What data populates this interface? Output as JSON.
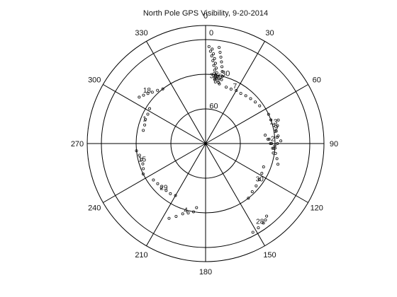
{
  "chart_data": {
    "type": "scatter",
    "projection": "polar",
    "title": "North Pole GPS Visibility, 9-20-2014",
    "angle_direction": "clockwise",
    "zero_location": "top",
    "angle_tick_labels": [
      "0",
      "30",
      "60",
      "90",
      "120",
      "150",
      "180",
      "210",
      "240",
      "270",
      "300",
      "330"
    ],
    "inner_zero_label": "0",
    "radial_tick_labels": [
      "30",
      "60"
    ],
    "elevation_range": [
      0,
      90
    ],
    "grid": true,
    "tracks": [
      {
        "prn": "16",
        "label_at": [
          10,
          34
        ],
        "points": [
          [
            4,
            8
          ],
          [
            5,
            12
          ],
          [
            6,
            16
          ],
          [
            7,
            20
          ],
          [
            8,
            24
          ],
          [
            9,
            28
          ],
          [
            10,
            31
          ],
          [
            11,
            34
          ],
          [
            12,
            36
          ],
          [
            13,
            37
          ]
        ]
      },
      {
        "prn": "30",
        "label_at": [
          7,
          33
        ],
        "points": [
          [
            2,
            6
          ],
          [
            3,
            10
          ],
          [
            4,
            14
          ],
          [
            5,
            18
          ],
          [
            6,
            22
          ],
          [
            7,
            26
          ],
          [
            7,
            29
          ],
          [
            8,
            32
          ],
          [
            8,
            34
          ],
          [
            9,
            36
          ]
        ]
      },
      {
        "prn": "15",
        "label_at": [
          11,
          33
        ],
        "points": [
          [
            8,
            6
          ],
          [
            9,
            10
          ],
          [
            10,
            14
          ],
          [
            11,
            18
          ],
          [
            12,
            22
          ],
          [
            13,
            26
          ],
          [
            14,
            30
          ],
          [
            14,
            33
          ]
        ]
      },
      {
        "prn": "7",
        "label_at": [
          28,
          36
        ],
        "points": [
          [
            20,
            38
          ],
          [
            25,
            38
          ],
          [
            30,
            37
          ],
          [
            35,
            37
          ],
          [
            40,
            36
          ],
          [
            45,
            35
          ],
          [
            50,
            34
          ],
          [
            55,
            33
          ]
        ]
      },
      {
        "prn": "13",
        "label_at": [
          74,
          29
        ],
        "points": [
          [
            65,
            30
          ],
          [
            70,
            30
          ],
          [
            75,
            29
          ],
          [
            80,
            29
          ],
          [
            85,
            28
          ],
          [
            90,
            28
          ]
        ]
      },
      {
        "prn": "9",
        "label_at": [
          79,
          28
        ],
        "points": [
          [
            72,
            24
          ],
          [
            76,
            26
          ],
          [
            80,
            28
          ],
          [
            84,
            27
          ],
          [
            88,
            25
          ]
        ]
      },
      {
        "prn": "8",
        "label_at": [
          95,
          30
        ],
        "points": [
          [
            86,
            36
          ],
          [
            90,
            34
          ],
          [
            94,
            31
          ],
          [
            98,
            29
          ],
          [
            102,
            27
          ],
          [
            106,
            25
          ]
        ]
      },
      {
        "prn": "2",
        "label_at": [
          88,
          32
        ],
        "points": [
          [
            82,
            38
          ],
          [
            86,
            35
          ],
          [
            90,
            33
          ],
          [
            94,
            32
          ],
          [
            98,
            31
          ]
        ]
      },
      {
        "prn": "30",
        "label_at": [
          125,
          33
        ],
        "points": [
          [
            112,
            36
          ],
          [
            118,
            35
          ],
          [
            124,
            34
          ],
          [
            130,
            33
          ],
          [
            136,
            32
          ],
          [
            142,
            30
          ]
        ]
      },
      {
        "prn": "28",
        "label_at": [
          146,
          6
        ],
        "points": [
          [
            140,
            8
          ],
          [
            142,
            6
          ],
          [
            144,
            5
          ],
          [
            148,
            4
          ],
          [
            152,
            3
          ]
        ]
      },
      {
        "prn": "4",
        "label_at": [
          196,
          28
        ],
        "points": [
          [
            188,
            34
          ],
          [
            190,
            30
          ],
          [
            194,
            28
          ],
          [
            198,
            26
          ],
          [
            202,
            22
          ],
          [
            206,
            18
          ]
        ]
      },
      {
        "prn": "29",
        "label_at": [
          222,
          36
        ],
        "points": [
          [
            210,
            38
          ],
          [
            215,
            37
          ],
          [
            220,
            37
          ],
          [
            225,
            36
          ],
          [
            230,
            36
          ],
          [
            235,
            35
          ]
        ]
      },
      {
        "prn": "15",
        "label_at": [
          254,
          33
        ],
        "points": [
          [
            244,
            30
          ],
          [
            248,
            32
          ],
          [
            252,
            33
          ],
          [
            256,
            33
          ],
          [
            260,
            32
          ],
          [
            264,
            30
          ]
        ]
      },
      {
        "prn": "1",
        "label_at": [
          290,
          34
        ],
        "points": [
          [
            282,
            35
          ],
          [
            287,
            35
          ],
          [
            292,
            34
          ],
          [
            297,
            34
          ],
          [
            302,
            33
          ]
        ]
      },
      {
        "prn": "18",
        "label_at": [
          311,
          23
        ],
        "points": [
          [
            305,
            20
          ],
          [
            308,
            22
          ],
          [
            311,
            24
          ],
          [
            314,
            26
          ],
          [
            318,
            28
          ],
          [
            322,
            30
          ]
        ]
      }
    ]
  }
}
